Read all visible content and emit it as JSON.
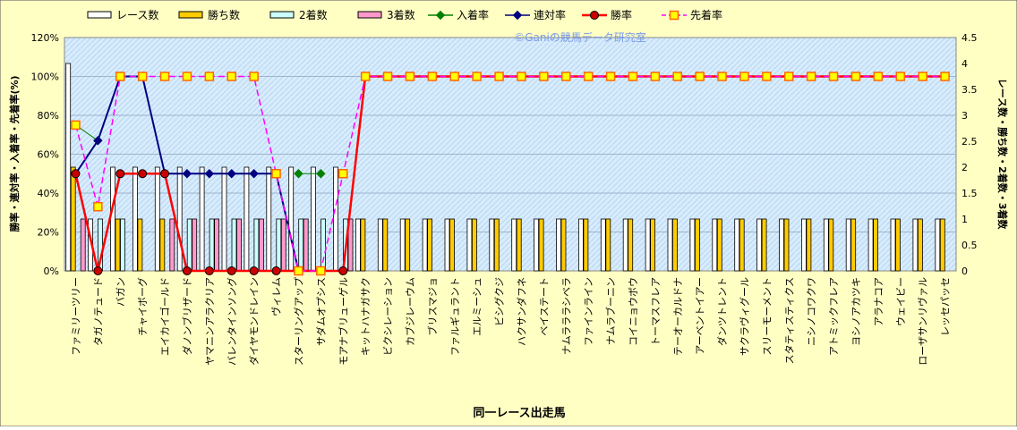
{
  "chart_data": {
    "type": "bar",
    "watermark": "©Ganiの競馬データ研究室",
    "xlabel": "同一レース出走馬",
    "ylabel_left": "勝率・連対率・入着率・先着率(%)",
    "ylabel_right": "レース数・勝ち数・2着数・3着数",
    "y_left_range": [
      0,
      120
    ],
    "y_left_ticks": [
      "0%",
      "20%",
      "40%",
      "60%",
      "80%",
      "100%",
      "120%"
    ],
    "y_right_range": [
      0,
      4.5
    ],
    "y_right_ticks": [
      "0",
      "0.5",
      "1",
      "1.5",
      "2",
      "2.5",
      "3",
      "3.5",
      "4",
      "4.5"
    ],
    "grid": true,
    "legend_position": "top",
    "categories": [
      "ファミリーツリー",
      "タガノテュード",
      "バガン",
      "チャイボーグ",
      "エイカイゴールド",
      "ダノンブリザード",
      "ヤマニンアラクリア",
      "バレンタインソング",
      "ダイヤモンドレイン",
      "ヴィレム",
      "スターリングアップ",
      "サダムオプシス",
      "モアナブリューゲル",
      "キットハナガサク",
      "ビクシレーション",
      "カブジレーウム",
      "ブリスマジョ",
      "ファルギュラント",
      "エルミーシュ",
      "ビシグクジ",
      "ハクサンダフネ",
      "ベイステート",
      "ナムラララシベラ",
      "ファインライン",
      "ナムラブーニン",
      "コイニョウボウ",
      "トーマスフレア",
      "テーオーカルドナ",
      "アーベントイアー",
      "ダンツトレント",
      "サクラヴィグール",
      "スリーモーメント",
      "スタティスティクス",
      "ニシノコワクワ",
      "アトミックフレア",
      "ヨシノアカツキ",
      "アラナコア",
      "ウェイビー",
      "ローザサンリヴァル",
      "レッセパッセ"
    ],
    "series": [
      {
        "name": "レース数",
        "axis": "right",
        "color": "#ffffff",
        "values": [
          4,
          1,
          2,
          2,
          2,
          2,
          2,
          2,
          2,
          2,
          2,
          2,
          2,
          1,
          1,
          1,
          1,
          1,
          1,
          1,
          1,
          1,
          1,
          1,
          1,
          1,
          1,
          1,
          1,
          1,
          1,
          1,
          1,
          1,
          1,
          1,
          1,
          1,
          1,
          1
        ]
      },
      {
        "name": "勝ち数",
        "axis": "right",
        "color": "#ffcc00",
        "values": [
          2,
          0,
          1,
          1,
          1,
          0,
          0,
          0,
          0,
          0,
          0,
          0,
          0,
          1,
          1,
          1,
          1,
          1,
          1,
          1,
          1,
          1,
          1,
          1,
          1,
          1,
          1,
          1,
          1,
          1,
          1,
          1,
          1,
          1,
          1,
          1,
          1,
          1,
          1,
          1
        ]
      },
      {
        "name": "2着数",
        "axis": "right",
        "color": "#ccffff",
        "values": [
          0,
          1,
          1,
          0,
          0,
          1,
          1,
          1,
          1,
          1,
          1,
          1,
          1,
          0,
          0,
          0,
          0,
          0,
          0,
          0,
          0,
          0,
          0,
          0,
          0,
          0,
          0,
          0,
          0,
          0,
          0,
          0,
          0,
          0,
          0,
          0,
          0,
          0,
          0,
          0
        ]
      },
      {
        "name": "3着数",
        "axis": "right",
        "color": "#ff99cc",
        "values": [
          1,
          0,
          0,
          0,
          1,
          1,
          1,
          1,
          1,
          1,
          1,
          0,
          1,
          0,
          0,
          0,
          0,
          0,
          0,
          0,
          0,
          0,
          0,
          0,
          0,
          0,
          0,
          0,
          0,
          0,
          0,
          0,
          0,
          0,
          0,
          0,
          0,
          0,
          0,
          0
        ]
      },
      {
        "name": "入着率",
        "axis": "left",
        "color": "#008000",
        "marker": "diamond",
        "values": [
          75,
          67,
          null,
          null,
          null,
          null,
          null,
          null,
          null,
          null,
          50,
          50,
          null,
          null,
          null,
          null,
          null,
          null,
          null,
          null,
          null,
          null,
          null,
          null,
          null,
          null,
          null,
          null,
          null,
          null,
          null,
          null,
          null,
          null,
          null,
          null,
          null,
          null,
          null,
          null
        ]
      },
      {
        "name": "連対率",
        "axis": "left",
        "color": "#000080",
        "marker": "diamond",
        "values": [
          50,
          67,
          100,
          100,
          50,
          50,
          50,
          50,
          50,
          50,
          0,
          null,
          null,
          null,
          null,
          null,
          null,
          null,
          null,
          null,
          null,
          null,
          null,
          null,
          null,
          null,
          null,
          null,
          null,
          null,
          null,
          null,
          null,
          null,
          null,
          null,
          null,
          null,
          null,
          null
        ]
      },
      {
        "name": "勝率",
        "axis": "left",
        "color": "#ff0000",
        "marker": "circle",
        "values": [
          50,
          0,
          50,
          50,
          50,
          0,
          0,
          0,
          0,
          0,
          0,
          0,
          0,
          100,
          100,
          100,
          100,
          100,
          100,
          100,
          100,
          100,
          100,
          100,
          100,
          100,
          100,
          100,
          100,
          100,
          100,
          100,
          100,
          100,
          100,
          100,
          100,
          100,
          100,
          100
        ]
      },
      {
        "name": "先着率",
        "axis": "left",
        "color": "#ff00ff",
        "marker": "square",
        "dashed": true,
        "values": [
          75,
          33,
          100,
          100,
          100,
          100,
          100,
          100,
          100,
          50,
          0,
          0,
          50,
          100,
          100,
          100,
          100,
          100,
          100,
          100,
          100,
          100,
          100,
          100,
          100,
          100,
          100,
          100,
          100,
          100,
          100,
          100,
          100,
          100,
          100,
          100,
          100,
          100,
          100,
          100
        ]
      }
    ]
  }
}
